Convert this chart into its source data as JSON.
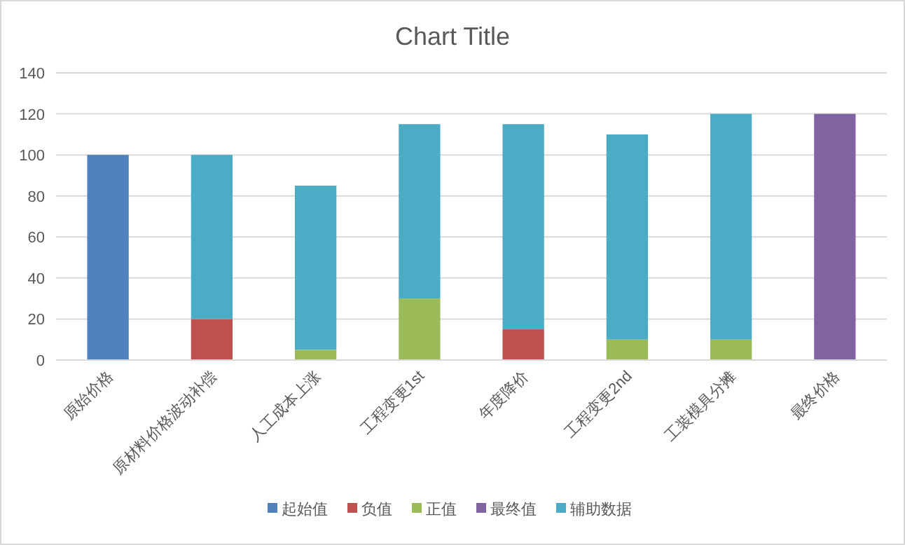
{
  "chart_data": {
    "type": "bar",
    "title": "Chart Title",
    "stacked": true,
    "categories": [
      "原始价格",
      "原材料价格波动补偿",
      "人工成本上涨",
      "工程变更1st",
      "年度降价",
      "工程变更2nd",
      "工装模具分摊",
      "最终价格"
    ],
    "series": [
      {
        "name": "起始值",
        "color": "#4f81bd",
        "values": [
          100,
          null,
          null,
          null,
          null,
          null,
          null,
          null
        ]
      },
      {
        "name": "负值",
        "color": "#c0504d",
        "values": [
          null,
          20,
          null,
          null,
          15,
          null,
          null,
          null
        ]
      },
      {
        "name": "正值",
        "color": "#9bbb59",
        "values": [
          null,
          null,
          5,
          30,
          null,
          10,
          10,
          null
        ]
      },
      {
        "name": "最终值",
        "color": "#8064a2",
        "values": [
          null,
          null,
          null,
          null,
          null,
          null,
          null,
          120
        ]
      },
      {
        "name": "辅助数据",
        "color": "#4bacc6",
        "values": [
          null,
          80,
          80,
          85,
          100,
          100,
          110,
          null
        ]
      }
    ],
    "ylim": [
      0,
      140
    ],
    "yticks": [
      0,
      20,
      40,
      60,
      80,
      100,
      120,
      140
    ],
    "grid": "y",
    "legend": "bottom"
  }
}
